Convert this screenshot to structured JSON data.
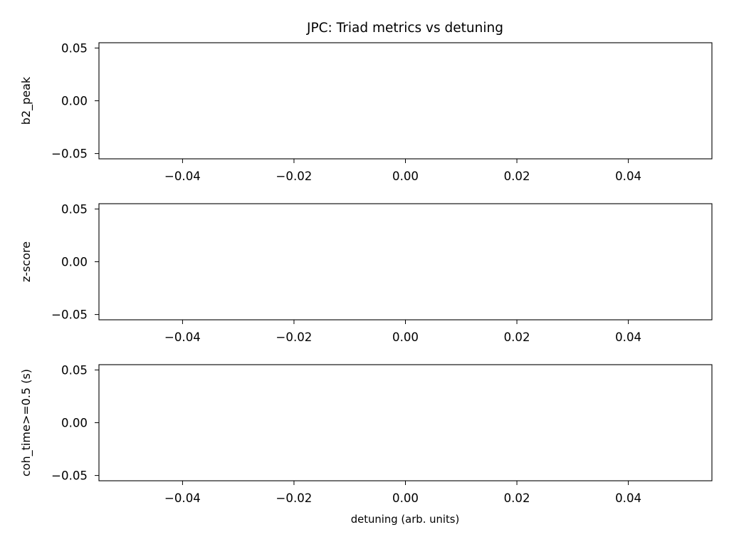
{
  "chart_data": {
    "title": "JPC: Triad metrics vs detuning",
    "xlabel": "detuning (arb. units)",
    "panels": [
      {
        "type": "line",
        "ylabel": "b2_peak",
        "xlim": [
          -0.055,
          0.055
        ],
        "ylim": [
          -0.055,
          0.055
        ],
        "xticks": [
          -0.04,
          -0.02,
          0.0,
          0.02,
          0.04
        ],
        "xtick_labels": [
          "−0.04",
          "−0.02",
          "0.00",
          "0.02",
          "0.04"
        ],
        "yticks": [
          0.05,
          0.0,
          -0.05
        ],
        "ytick_labels": [
          "0.05",
          "0.00",
          "−0.05"
        ],
        "series": []
      },
      {
        "type": "line",
        "ylabel": "z-score",
        "xlim": [
          -0.055,
          0.055
        ],
        "ylim": [
          -0.055,
          0.055
        ],
        "xticks": [
          -0.04,
          -0.02,
          0.0,
          0.02,
          0.04
        ],
        "xtick_labels": [
          "−0.04",
          "−0.02",
          "0.00",
          "0.02",
          "0.04"
        ],
        "yticks": [
          0.05,
          0.0,
          -0.05
        ],
        "ytick_labels": [
          "0.05",
          "0.00",
          "−0.05"
        ],
        "series": []
      },
      {
        "type": "line",
        "ylabel": "coh_time>=0.5 (s)",
        "xlim": [
          -0.055,
          0.055
        ],
        "ylim": [
          -0.055,
          0.055
        ],
        "xticks": [
          -0.04,
          -0.02,
          0.0,
          0.02,
          0.04
        ],
        "xtick_labels": [
          "−0.04",
          "−0.02",
          "0.00",
          "0.02",
          "0.04"
        ],
        "yticks": [
          0.05,
          0.0,
          -0.05
        ],
        "ytick_labels": [
          "0.05",
          "0.00",
          "−0.05"
        ],
        "series": []
      }
    ],
    "grid": false
  }
}
